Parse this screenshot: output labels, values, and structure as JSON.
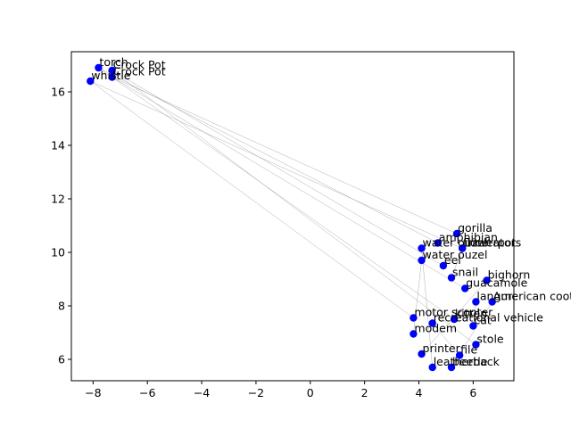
{
  "chart_data": {
    "type": "scatter",
    "title": "",
    "xlabel": "",
    "ylabel": "",
    "xlim": [
      -8.8,
      7.5
    ],
    "ylim": [
      5.2,
      17.5
    ],
    "xticks": [
      -8,
      -6,
      -4,
      -2,
      0,
      2,
      4,
      6
    ],
    "yticks": [
      6,
      8,
      10,
      12,
      14,
      16
    ],
    "grid": false,
    "marker_color": "#0000ff",
    "edge_color": "#999999",
    "points": [
      {
        "label": "torch",
        "x": -7.8,
        "y": 16.9
      },
      {
        "label": "Crock Pot",
        "x": -7.3,
        "y": 16.8
      },
      {
        "label": "Crock Pot",
        "x": -7.3,
        "y": 16.55
      },
      {
        "label": "whistle",
        "x": -8.1,
        "y": 16.4
      },
      {
        "label": "gorilla",
        "x": 5.4,
        "y": 10.7
      },
      {
        "label": "amphibian",
        "x": 4.7,
        "y": 10.35
      },
      {
        "label": "water ouzel",
        "x": 4.1,
        "y": 10.15
      },
      {
        "label": "flowerpot",
        "x": 5.6,
        "y": 10.15
      },
      {
        "label": "tricerators",
        "x": 5.6,
        "y": 10.15
      },
      {
        "label": "water ouzel",
        "x": 4.1,
        "y": 9.7
      },
      {
        "label": "eel",
        "x": 4.9,
        "y": 9.5
      },
      {
        "label": "snail",
        "x": 5.2,
        "y": 9.05
      },
      {
        "label": "bighorn",
        "x": 6.5,
        "y": 8.95
      },
      {
        "label": "guacamole",
        "x": 5.7,
        "y": 8.65
      },
      {
        "label": "langur",
        "x": 6.1,
        "y": 8.15
      },
      {
        "label": "American coot",
        "x": 6.7,
        "y": 8.15
      },
      {
        "label": "motor scooter",
        "x": 3.8,
        "y": 7.55
      },
      {
        "label": "recreational vehicle",
        "x": 4.5,
        "y": 7.35
      },
      {
        "label": "kitten",
        "x": 5.3,
        "y": 7.5
      },
      {
        "label": "cat",
        "x": 6.0,
        "y": 7.25
      },
      {
        "label": "modem",
        "x": 3.8,
        "y": 6.95
      },
      {
        "label": "stole",
        "x": 6.1,
        "y": 6.55
      },
      {
        "label": "printer",
        "x": 4.1,
        "y": 6.2
      },
      {
        "label": "file",
        "x": 5.5,
        "y": 6.15
      },
      {
        "label": "leatherback",
        "x": 4.5,
        "y": 5.7
      },
      {
        "label": "beetle",
        "x": 5.2,
        "y": 5.7
      }
    ],
    "edges": [
      [
        0,
        18
      ],
      [
        0,
        5
      ],
      [
        1,
        10
      ],
      [
        1,
        21
      ],
      [
        2,
        4
      ],
      [
        2,
        13
      ],
      [
        3,
        16
      ],
      [
        3,
        8
      ],
      [
        7,
        11
      ],
      [
        9,
        20
      ],
      [
        14,
        19
      ],
      [
        12,
        22
      ],
      [
        17,
        23
      ],
      [
        6,
        24
      ],
      [
        15,
        25
      ]
    ]
  }
}
